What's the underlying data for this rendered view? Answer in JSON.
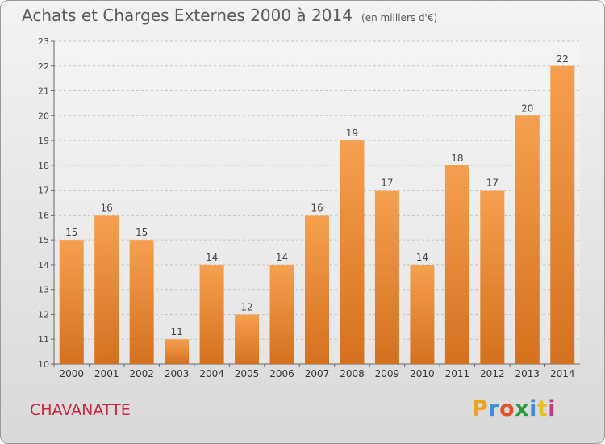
{
  "chart_data": {
    "type": "bar",
    "title": "Achats et Charges Externes 2000 à 2014",
    "unit_note": "(en milliers d'€)",
    "categories": [
      "2000",
      "2001",
      "2002",
      "2003",
      "2004",
      "2005",
      "2006",
      "2007",
      "2008",
      "2009",
      "2010",
      "2011",
      "2012",
      "2013",
      "2014"
    ],
    "values": [
      15,
      16,
      15,
      11,
      14,
      12,
      14,
      16,
      19,
      17,
      14,
      18,
      17,
      20,
      22
    ],
    "ylim": [
      10,
      23
    ],
    "yticks": [
      10,
      11,
      12,
      13,
      14,
      15,
      16,
      17,
      18,
      19,
      20,
      21,
      22,
      23
    ],
    "grid": true,
    "bar_color_top": "#f5a050",
    "bar_color_bottom": "#d4711e"
  },
  "footer": {
    "town": "CHAVANATTE",
    "logo_letters": [
      "P",
      "r",
      "o",
      "x",
      "i",
      "t",
      "i"
    ],
    "logo_colors": [
      "#f0a020",
      "#3a8fd8",
      "#e8502a",
      "#2a9a3a",
      "#3a8fd8",
      "#e8c020",
      "#c03a8a"
    ]
  }
}
